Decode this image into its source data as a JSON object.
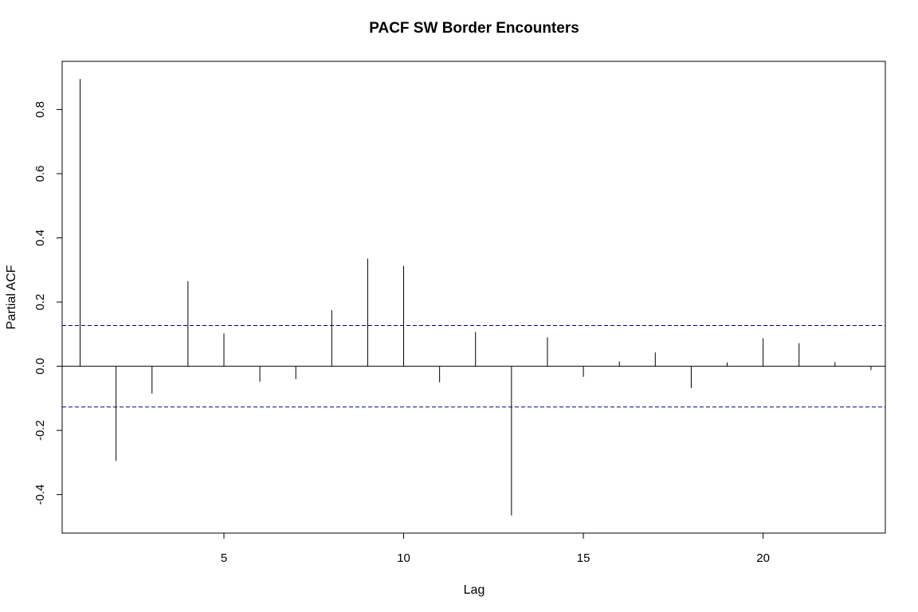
{
  "chart_data": {
    "type": "bar",
    "title": "PACF SW Border Encounters",
    "xlabel": "Lag",
    "ylabel": "Partial ACF",
    "x": [
      1,
      2,
      3,
      4,
      5,
      6,
      7,
      8,
      9,
      10,
      11,
      12,
      13,
      14,
      15,
      16,
      17,
      18,
      19,
      20,
      21,
      22,
      23
    ],
    "values": [
      0.895,
      -0.295,
      -0.085,
      0.265,
      0.102,
      -0.048,
      -0.04,
      0.175,
      0.335,
      0.313,
      -0.05,
      0.107,
      -0.465,
      0.09,
      -0.033,
      0.015,
      0.043,
      -0.068,
      0.012,
      0.087,
      0.072,
      0.013,
      -0.012
    ],
    "confidence_bounds": [
      0.127,
      -0.127
    ],
    "xlim": [
      0.5,
      23.4
    ],
    "ylim": [
      -0.52,
      0.95
    ],
    "xticks": [
      5,
      10,
      15,
      20
    ],
    "yticks": [
      -0.4,
      -0.2,
      0.0,
      0.2,
      0.4,
      0.6,
      0.8
    ],
    "ytick_labels": [
      "-0.4",
      "-0.2",
      "0.0",
      "0.2",
      "0.4",
      "0.6",
      "0.8"
    ],
    "xtick_labels": [
      "5",
      "10",
      "15",
      "20"
    ],
    "grid": false,
    "colors": {
      "bars": "#000000",
      "bounds": "#00008b",
      "zero_line": "#000000"
    }
  }
}
